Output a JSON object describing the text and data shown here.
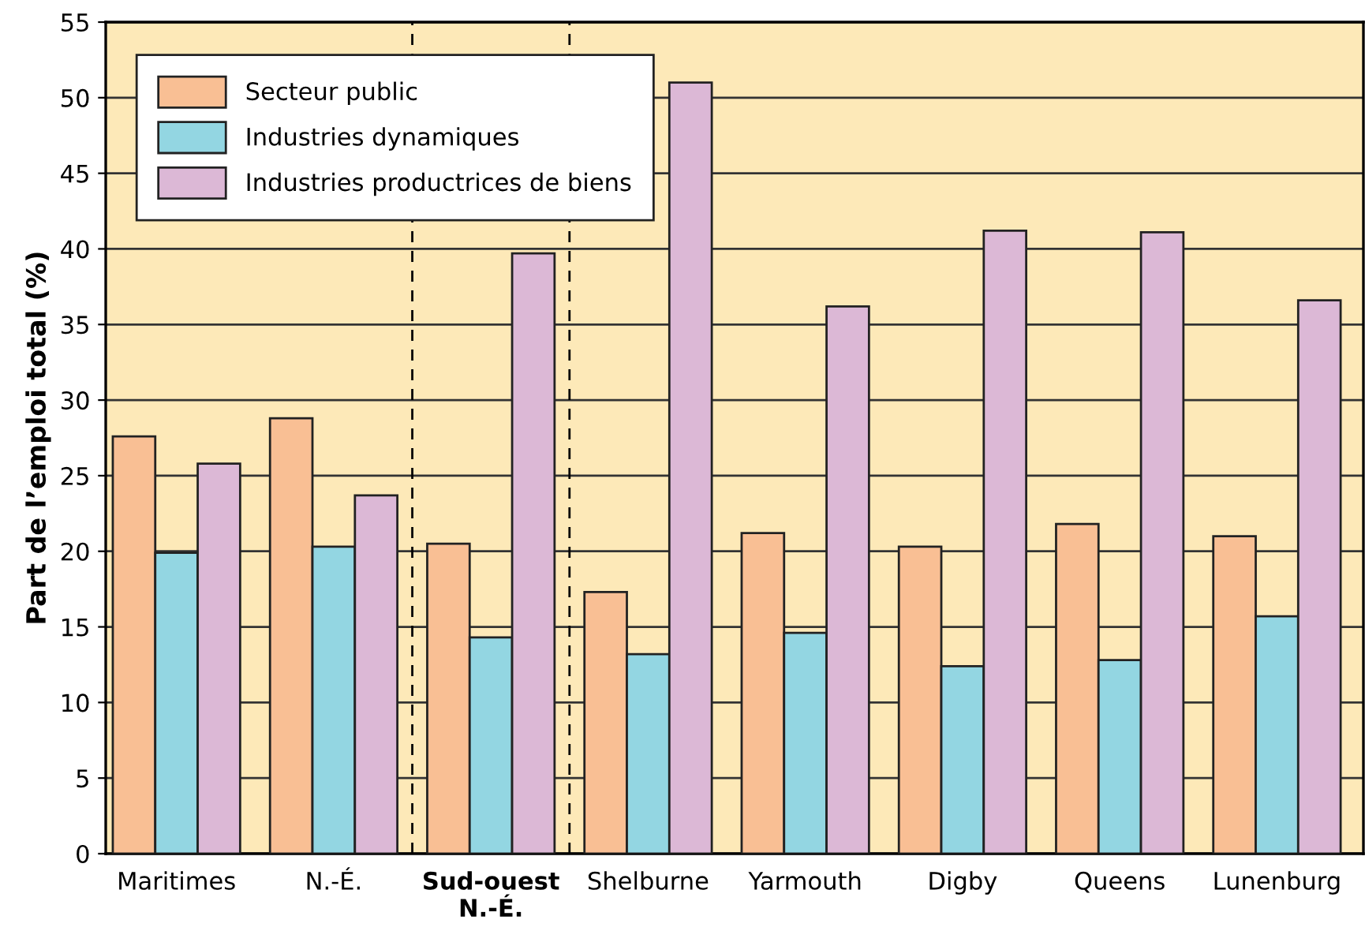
{
  "chart_data": {
    "type": "bar",
    "ylabel": "Part de l’emploi total (%)",
    "categories": [
      "Maritimes",
      "N.-É.",
      "Sud-ouest\nN.-É.",
      "Shelburne",
      "Yarmouth",
      "Digby",
      "Queens",
      "Lunenburg"
    ],
    "series": [
      {
        "name": "Secteur public",
        "color": "#f9bf94",
        "values": [
          27.6,
          28.8,
          20.5,
          17.3,
          21.2,
          20.3,
          21.8,
          21.0
        ]
      },
      {
        "name": "Industries dynamiques",
        "color": "#93d6e2",
        "values": [
          19.9,
          20.3,
          14.3,
          13.2,
          14.6,
          12.4,
          12.8,
          15.7
        ]
      },
      {
        "name": "Industries productrices de biens",
        "color": "#dcb8d6",
        "values": [
          25.8,
          23.7,
          39.7,
          51.0,
          36.2,
          41.2,
          41.1,
          36.6
        ]
      }
    ],
    "ylim": [
      0,
      55
    ],
    "yticks": [
      0,
      5,
      10,
      15,
      20,
      25,
      30,
      35,
      40,
      45,
      50,
      55
    ],
    "grid": "y",
    "legend": "top left"
  }
}
